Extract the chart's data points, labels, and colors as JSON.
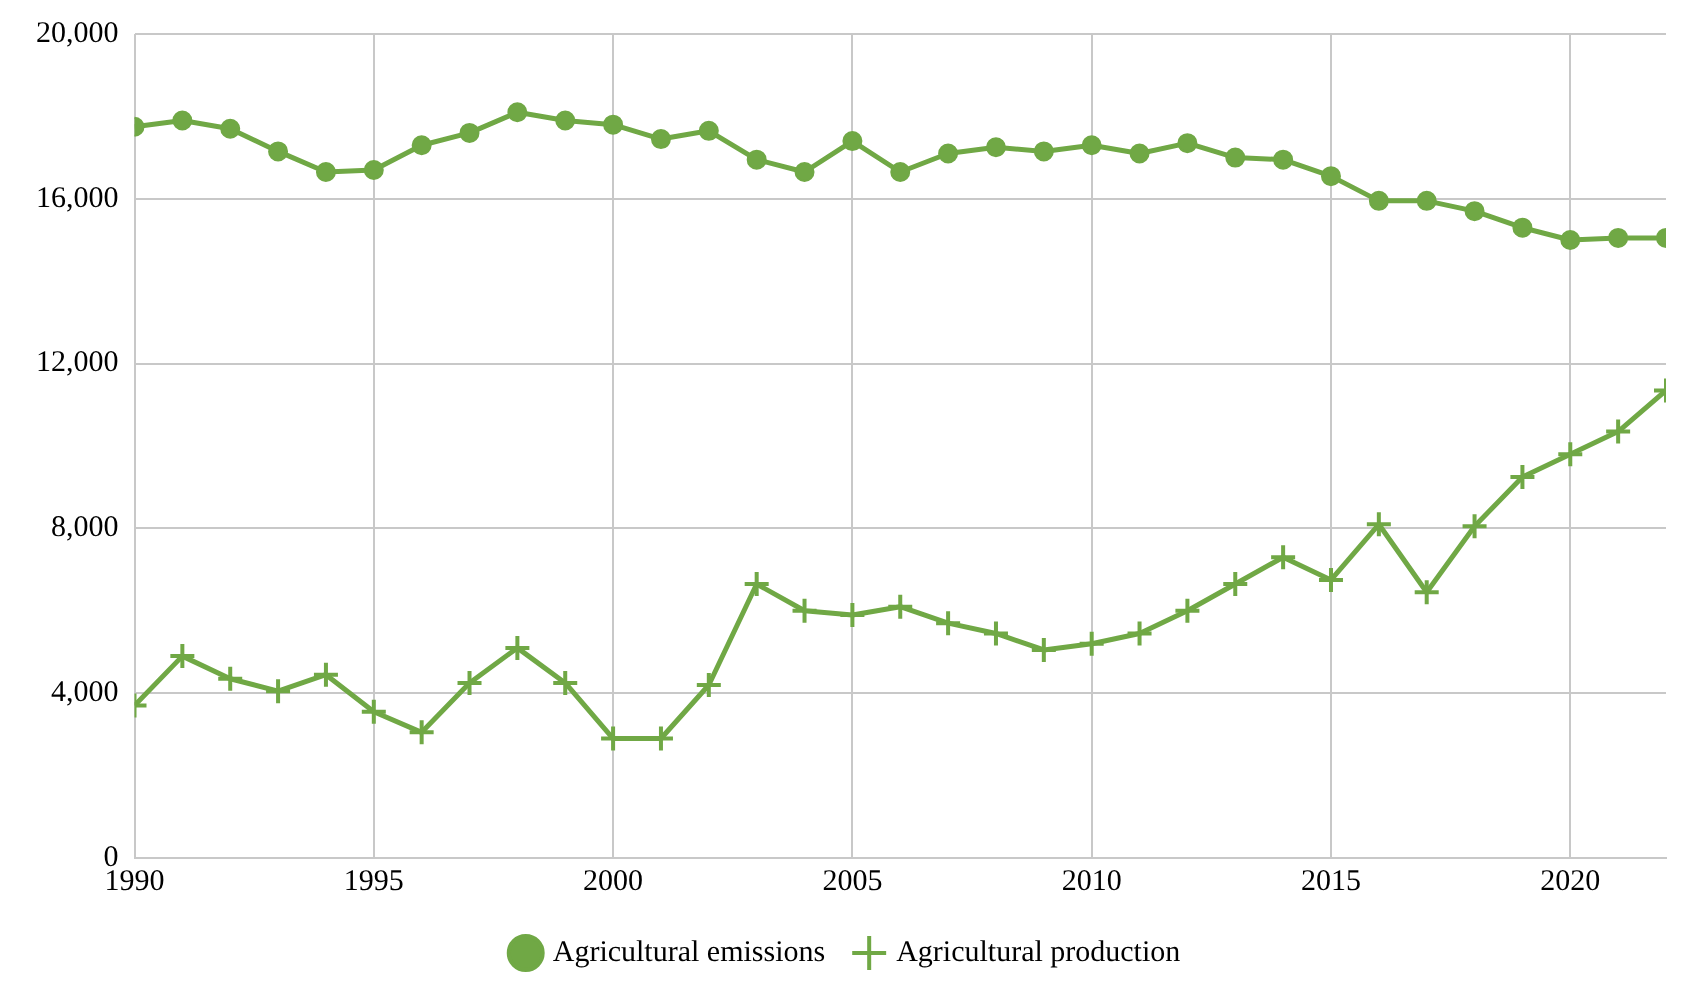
{
  "chart_data": {
    "type": "line",
    "x": [
      1990,
      1991,
      1992,
      1993,
      1994,
      1995,
      1996,
      1997,
      1998,
      1999,
      2000,
      2001,
      2002,
      2003,
      2004,
      2005,
      2006,
      2007,
      2008,
      2009,
      2010,
      2011,
      2012,
      2013,
      2014,
      2015,
      2016,
      2017,
      2018,
      2019,
      2020,
      2021,
      2022
    ],
    "series": [
      {
        "name": "Agricultural emissions",
        "color": "#70a845",
        "marker": "circle",
        "values": [
          17750,
          17900,
          17700,
          17150,
          16650,
          16700,
          17300,
          17600,
          18100,
          17900,
          17800,
          17450,
          17650,
          16950,
          16650,
          17400,
          16650,
          17100,
          17250,
          17150,
          17300,
          17100,
          17350,
          17000,
          16950,
          16550,
          15950,
          15950,
          15700,
          15300,
          15000,
          15050,
          15050
        ]
      },
      {
        "name": "Agricultural production",
        "color": "#70a845",
        "marker": "cross",
        "values": [
          3700,
          4900,
          4350,
          4050,
          4450,
          3550,
          3050,
          4250,
          5100,
          4250,
          2900,
          2900,
          4200,
          6650,
          6000,
          5900,
          6100,
          5700,
          5450,
          5050,
          5200,
          5450,
          6000,
          6650,
          7300,
          6750,
          8100,
          6450,
          8050,
          9250,
          9800,
          10350,
          11350
        ]
      }
    ],
    "xlim": [
      1990,
      2022
    ],
    "xticks": [
      1990,
      1995,
      2000,
      2005,
      2010,
      2015,
      2020
    ],
    "ylim": [
      0,
      20000
    ],
    "yticks": [
      0,
      {
        "value": 4000,
        "label": "4,000"
      },
      {
        "value": 8000,
        "label": "8,000"
      },
      {
        "value": 12000,
        "label": "12,000"
      },
      {
        "value": 16000,
        "label": "16,000"
      },
      {
        "value": 20000,
        "label": "20,000"
      }
    ],
    "grid": true,
    "legend": "bottom",
    "line_style": "solid"
  }
}
